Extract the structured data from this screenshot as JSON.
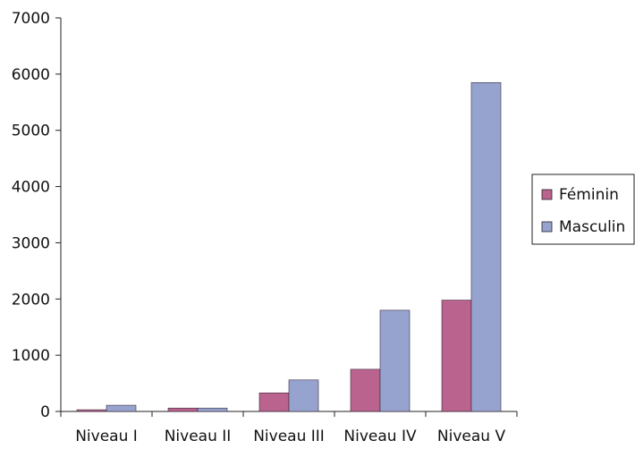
{
  "chart_data": {
    "type": "bar",
    "categories": [
      "Niveau I",
      "Niveau II",
      "Niveau III",
      "Niveau IV",
      "Niveau V"
    ],
    "series": [
      {
        "name": "Féminin",
        "color": "#b9638e",
        "values": [
          30,
          60,
          330,
          750,
          1980
        ]
      },
      {
        "name": "Masculin",
        "color": "#97a3cf",
        "values": [
          110,
          60,
          560,
          1800,
          5850
        ]
      }
    ],
    "yticks": [
      "0",
      "1000",
      "2000",
      "3000",
      "4000",
      "5000",
      "6000",
      "7000"
    ],
    "ylim": [
      0,
      7000
    ],
    "title": "",
    "xlabel": "",
    "ylabel": "",
    "grid": false,
    "legend_position": "right"
  }
}
